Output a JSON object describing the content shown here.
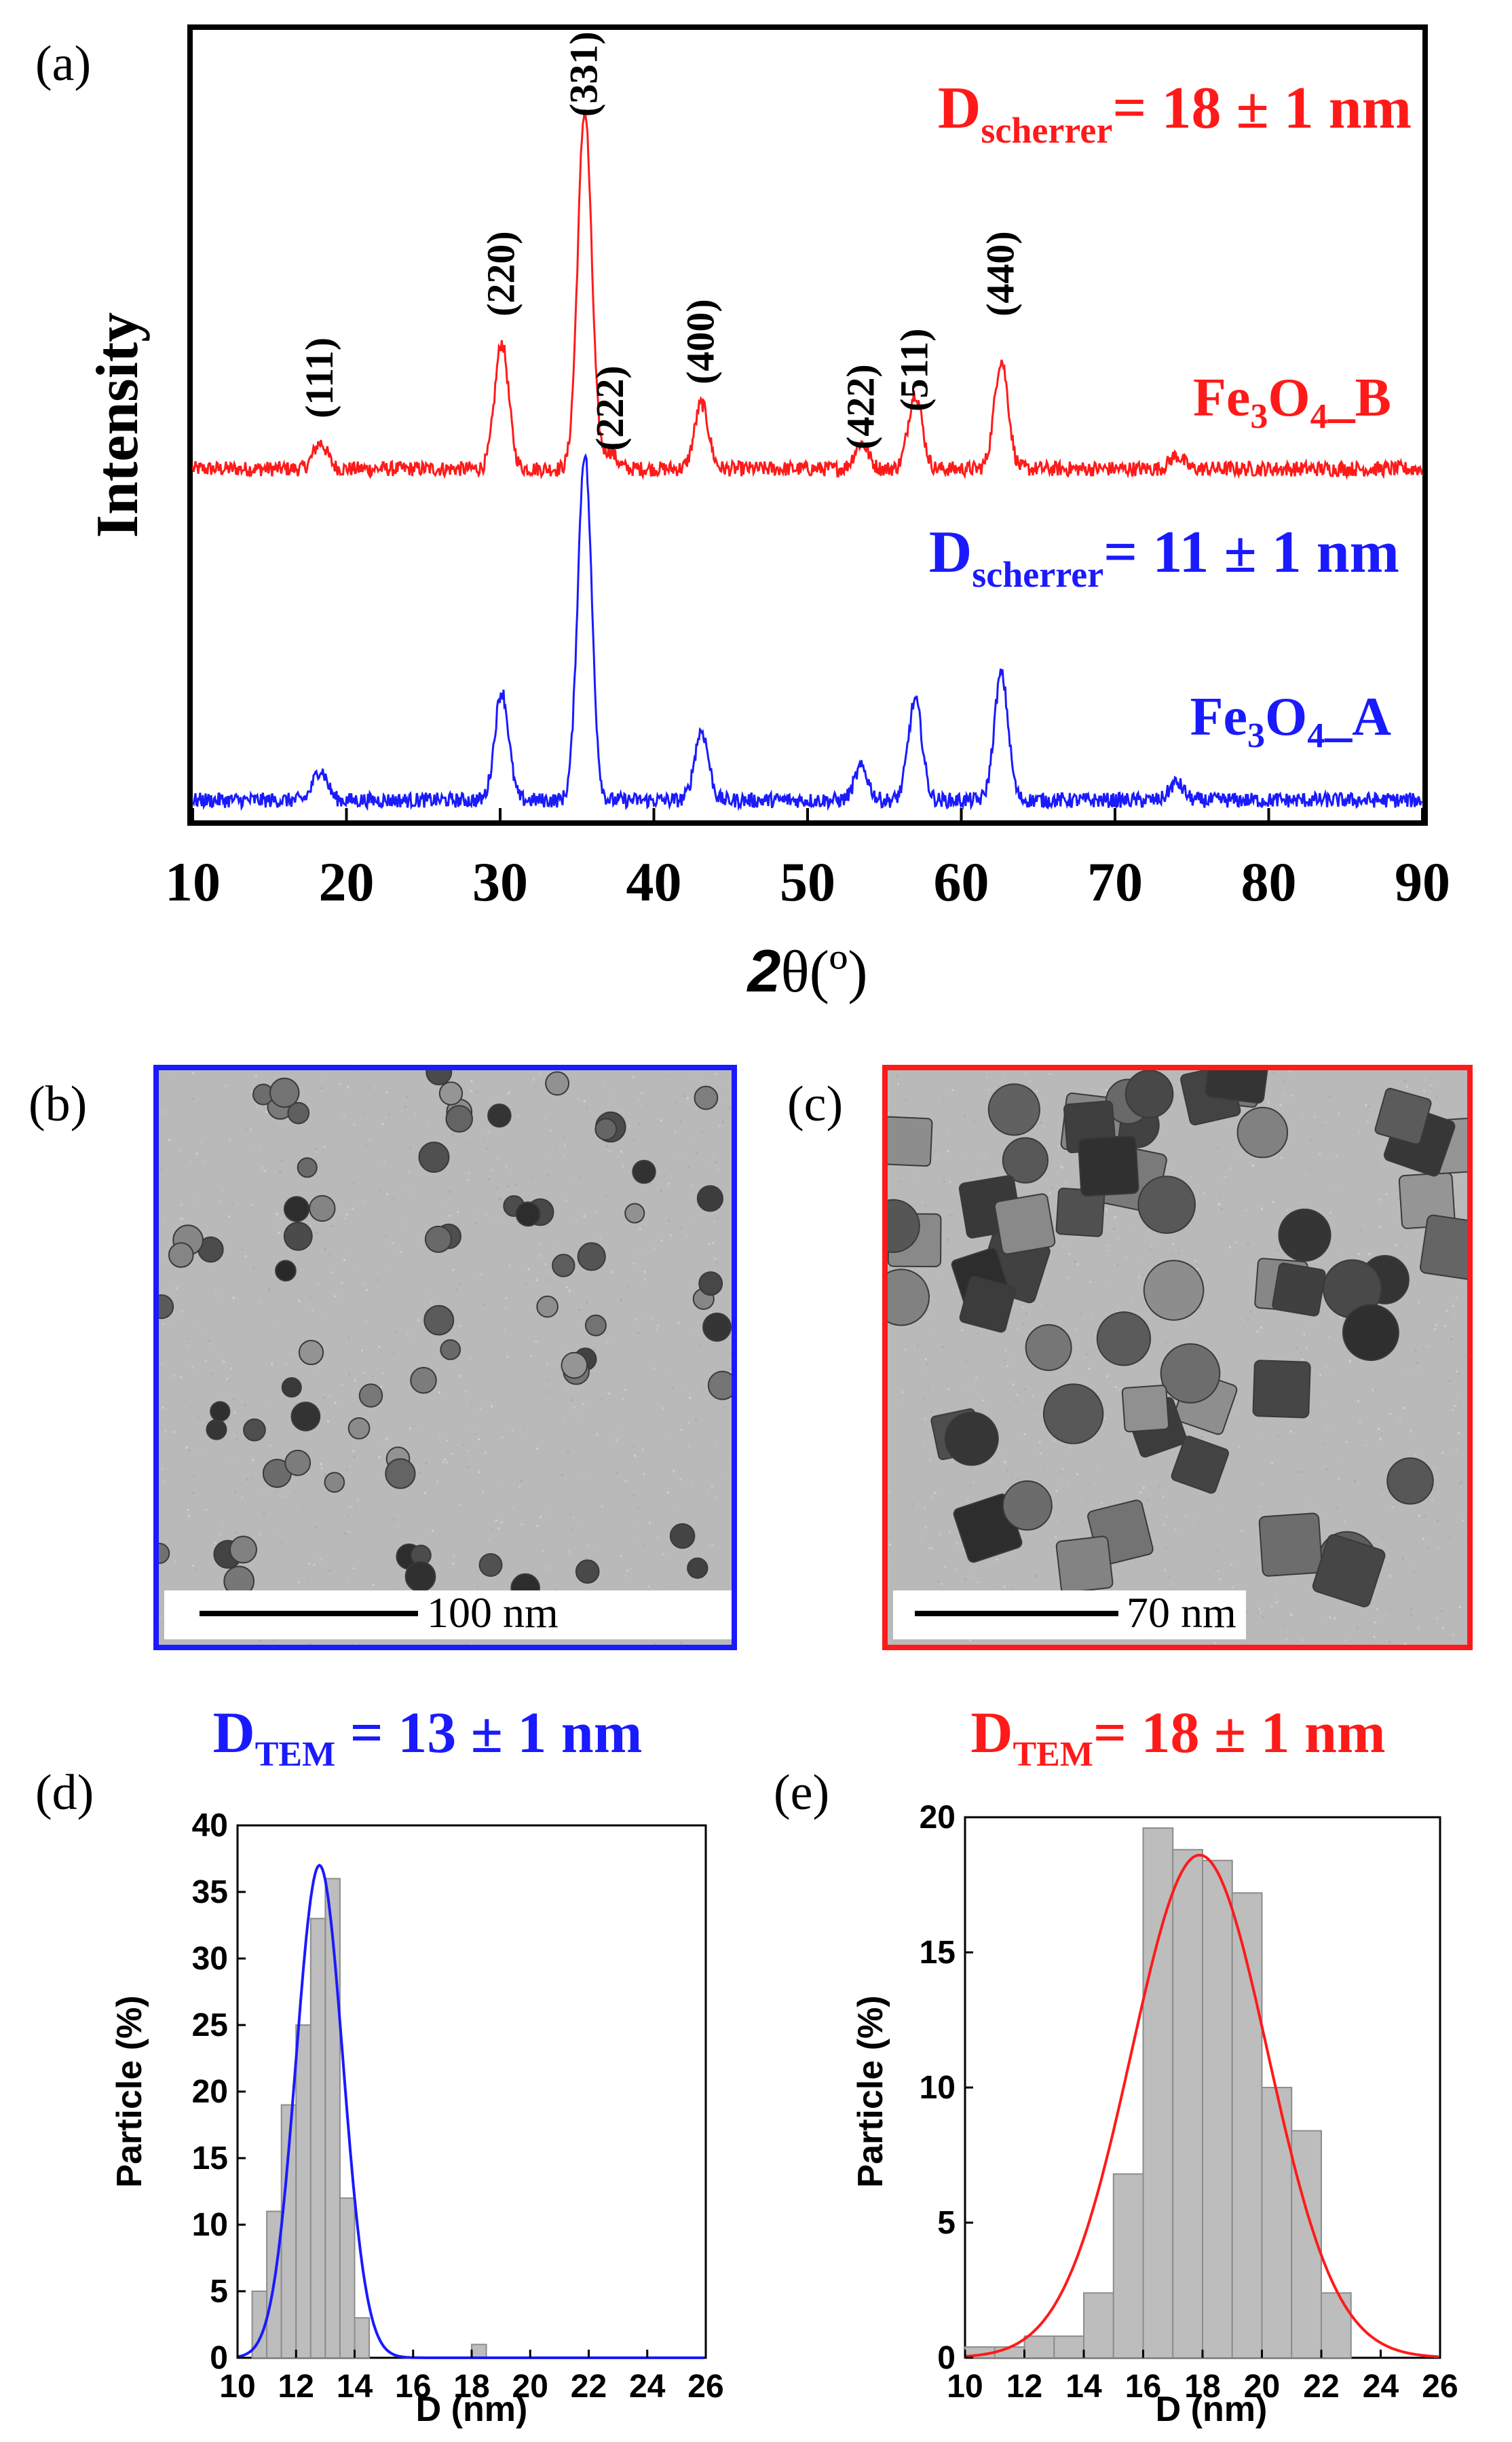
{
  "colors": {
    "blue": "#1a1aff",
    "red": "#ff1a1a",
    "hist_fill": "#bdbdbd",
    "hist_edge": "#8c8c8c"
  },
  "panel_a": {
    "label": "(a)",
    "ylabel": "Intensity",
    "xlabel_bold": "2",
    "xlabel_rest": "θ(º)",
    "xlim": [
      10,
      90
    ],
    "xticks": [
      "10",
      "20",
      "30",
      "40",
      "50",
      "60",
      "70",
      "80",
      "90"
    ],
    "annotation_B": {
      "prefix": "D",
      "sub": "scherrer",
      "suffix": "= 18 ± 1 nm"
    },
    "annotation_A": {
      "prefix": "D",
      "sub": "scherrer",
      "suffix": "= 11 ± 1 nm"
    },
    "label_B": {
      "a": "Fe",
      "s1": "3",
      "b": "O",
      "s2": "4",
      "c": "_B"
    },
    "label_A": {
      "a": "Fe",
      "s1": "3",
      "b": "O",
      "s2": "4",
      "c": "_A"
    },
    "miller": [
      {
        "text": "(111)",
        "x": 18.3
      },
      {
        "text": "(220)",
        "x": 30.1
      },
      {
        "text": "(331)",
        "x": 35.5
      },
      {
        "text": "(222)",
        "x": 37.2
      },
      {
        "text": "(400)",
        "x": 43.1
      },
      {
        "text": "(422)",
        "x": 53.5
      },
      {
        "text": "(511)",
        "x": 57.0
      },
      {
        "text": "(440)",
        "x": 62.6
      }
    ]
  },
  "panel_b": {
    "label": "(b)",
    "scale": "100 nm"
  },
  "panel_c": {
    "label": "(c)",
    "scale": "70 nm"
  },
  "panel_d": {
    "label": "(d)",
    "title": {
      "prefix": "D",
      "sub": "TEM",
      "suffix": " = 13 ± 1 nm"
    },
    "ylabel": "Particle (%)",
    "xlabel": "D (nm)",
    "xticks": [
      "10",
      "12",
      "14",
      "16",
      "18",
      "20",
      "22",
      "24",
      "26"
    ],
    "yticks": [
      "0",
      "5",
      "10",
      "15",
      "20",
      "25",
      "30",
      "35",
      "40"
    ]
  },
  "panel_e": {
    "label": "(e)",
    "title": {
      "prefix": "D",
      "sub": "TEM",
      "suffix": "= 18 ± 1 nm"
    },
    "ylabel": "Particle (%)",
    "xlabel": "D (nm)",
    "xticks": [
      "10",
      "12",
      "14",
      "16",
      "18",
      "20",
      "22",
      "24",
      "26"
    ],
    "yticks": [
      "0",
      "5",
      "10",
      "15",
      "20"
    ]
  },
  "chart_data": [
    {
      "type": "line",
      "title": "",
      "xlabel": "2θ(º)",
      "ylabel": "Intensity",
      "xlim": [
        10,
        90
      ],
      "series": [
        {
          "name": "Fe3O4_B",
          "color": "#ff1a1a",
          "baseline": 0.0,
          "peaks": [
            {
              "x": 18.3,
              "h": 0.012
            },
            {
              "x": 30.1,
              "h": 0.058
            },
            {
              "x": 35.5,
              "h": 0.165
            },
            {
              "x": 37.1,
              "h": 0.008
            },
            {
              "x": 43.1,
              "h": 0.03
            },
            {
              "x": 53.5,
              "h": 0.012
            },
            {
              "x": 57.0,
              "h": 0.035
            },
            {
              "x": 62.6,
              "h": 0.05
            },
            {
              "x": 74.0,
              "h": 0.006
            }
          ]
        },
        {
          "name": "Fe3O4_A",
          "color": "#1a1aff",
          "baseline": 0.0,
          "peaks": [
            {
              "x": 18.3,
              "h": 0.014
            },
            {
              "x": 30.1,
              "h": 0.05
            },
            {
              "x": 35.5,
              "h": 0.16
            },
            {
              "x": 43.1,
              "h": 0.032
            },
            {
              "x": 53.5,
              "h": 0.015
            },
            {
              "x": 57.0,
              "h": 0.046
            },
            {
              "x": 62.6,
              "h": 0.058
            },
            {
              "x": 74.0,
              "h": 0.008
            }
          ]
        }
      ]
    },
    {
      "type": "bar",
      "title": "DTEM = 13 ± 1 nm",
      "xlabel": "D (nm)",
      "ylabel": "Particle (%)",
      "xlim": [
        10,
        26
      ],
      "ylim": [
        0,
        40
      ],
      "bin_width": 0.5,
      "bins": [
        {
          "x0": 10.5,
          "value": 5
        },
        {
          "x0": 11.0,
          "value": 11
        },
        {
          "x0": 11.5,
          "value": 19
        },
        {
          "x0": 12.0,
          "value": 25
        },
        {
          "x0": 12.5,
          "value": 33
        },
        {
          "x0": 13.0,
          "value": 36
        },
        {
          "x0": 13.5,
          "value": 12
        },
        {
          "x0": 14.0,
          "value": 3
        },
        {
          "x0": 18.0,
          "value": 1
        }
      ],
      "fit": {
        "mean": 12.8,
        "sd": 0.8,
        "peak": 37
      }
    },
    {
      "type": "bar",
      "title": "DTEM= 18 ± 1 nm",
      "xlabel": "D (nm)",
      "ylabel": "Particle (%)",
      "xlim": [
        10,
        26
      ],
      "ylim": [
        0,
        20
      ],
      "bin_width": 1,
      "bins": [
        {
          "x0": 10,
          "value": 0.4
        },
        {
          "x0": 11,
          "value": 0.4
        },
        {
          "x0": 12,
          "value": 0.8
        },
        {
          "x0": 13,
          "value": 0.8
        },
        {
          "x0": 14,
          "value": 2.4
        },
        {
          "x0": 15,
          "value": 6.8
        },
        {
          "x0": 16,
          "value": 19.6
        },
        {
          "x0": 17,
          "value": 18.8
        },
        {
          "x0": 18,
          "value": 18.4
        },
        {
          "x0": 19,
          "value": 17.2
        },
        {
          "x0": 20,
          "value": 10.0
        },
        {
          "x0": 21,
          "value": 8.4
        },
        {
          "x0": 22,
          "value": 2.4
        }
      ],
      "fit": {
        "mean": 17.9,
        "sd": 2.3,
        "peak": 18.6
      }
    }
  ]
}
